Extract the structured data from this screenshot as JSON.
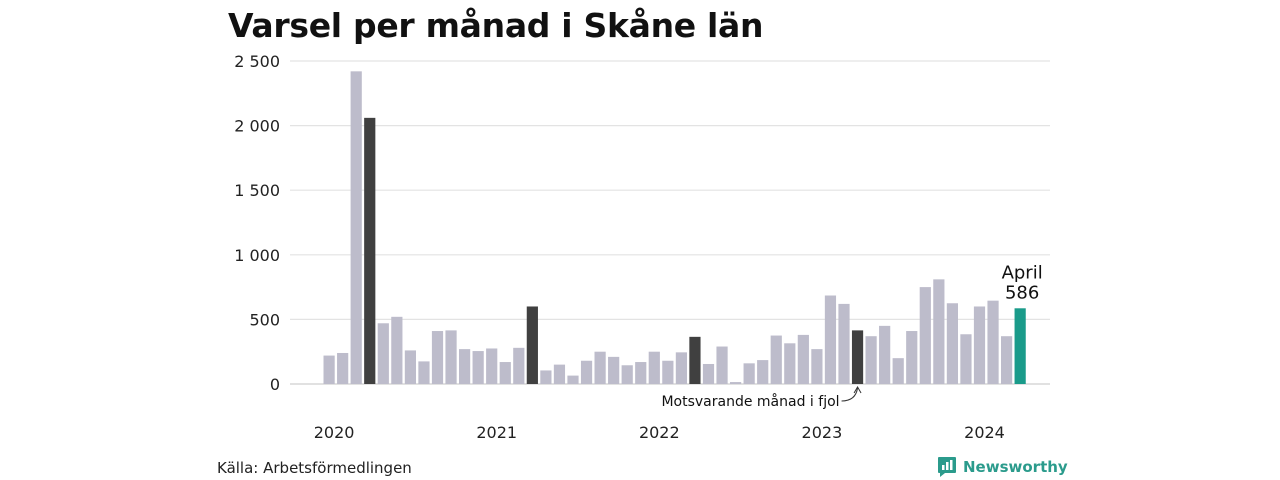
{
  "header": {
    "title": "Varsel per månad i Skåne län"
  },
  "footer": {
    "source": "Källa: Arbetsförmedlingen",
    "brand": "Newsworthy"
  },
  "colors": {
    "bar": "#bdbccb",
    "same_month_prev_years": "#404040",
    "current": "#1a9b8a",
    "grid": "#e3e3e3"
  },
  "chart_data": {
    "type": "bar",
    "title": "Varsel per månad i Skåne län",
    "xlabel": "",
    "ylabel": "",
    "ylim": [
      0,
      2500
    ],
    "yticks": [
      0,
      500,
      1000,
      1500,
      2000,
      2500
    ],
    "ytick_labels": [
      "0",
      "500",
      "1 000",
      "1 500",
      "2 000",
      "2 500"
    ],
    "year_labels": [
      "2020",
      "2021",
      "2022",
      "2023",
      "2024"
    ],
    "grid": true,
    "categories": [
      "2020-01",
      "2020-02",
      "2020-03",
      "2020-04",
      "2020-05",
      "2020-06",
      "2020-07",
      "2020-08",
      "2020-09",
      "2020-10",
      "2020-11",
      "2020-12",
      "2021-01",
      "2021-02",
      "2021-03",
      "2021-04",
      "2021-05",
      "2021-06",
      "2021-07",
      "2021-08",
      "2021-09",
      "2021-10",
      "2021-11",
      "2021-12",
      "2022-01",
      "2022-02",
      "2022-03",
      "2022-04",
      "2022-05",
      "2022-06",
      "2022-07",
      "2022-08",
      "2022-09",
      "2022-10",
      "2022-11",
      "2022-12",
      "2023-01",
      "2023-02",
      "2023-03",
      "2023-04",
      "2023-05",
      "2023-06",
      "2023-07",
      "2023-08",
      "2023-09",
      "2023-10",
      "2023-11",
      "2023-12",
      "2024-01",
      "2024-02",
      "2024-03",
      "2024-04"
    ],
    "values": [
      220,
      240,
      2420,
      2060,
      470,
      520,
      260,
      175,
      410,
      415,
      270,
      255,
      275,
      170,
      280,
      600,
      105,
      150,
      65,
      180,
      250,
      210,
      145,
      170,
      250,
      180,
      245,
      365,
      155,
      290,
      15,
      160,
      185,
      375,
      315,
      380,
      270,
      685,
      620,
      415,
      370,
      450,
      200,
      410,
      750,
      810,
      625,
      385,
      600,
      645,
      370,
      586
    ],
    "highlight": {
      "same_month_indices": [
        3,
        15,
        27,
        39
      ],
      "current_index": 51
    },
    "annotations": [
      {
        "text": "April",
        "target_index": 51
      },
      {
        "text": "586",
        "target_index": 51
      },
      {
        "text": "Motsvarande månad i fjol",
        "target_index": 39
      }
    ]
  }
}
